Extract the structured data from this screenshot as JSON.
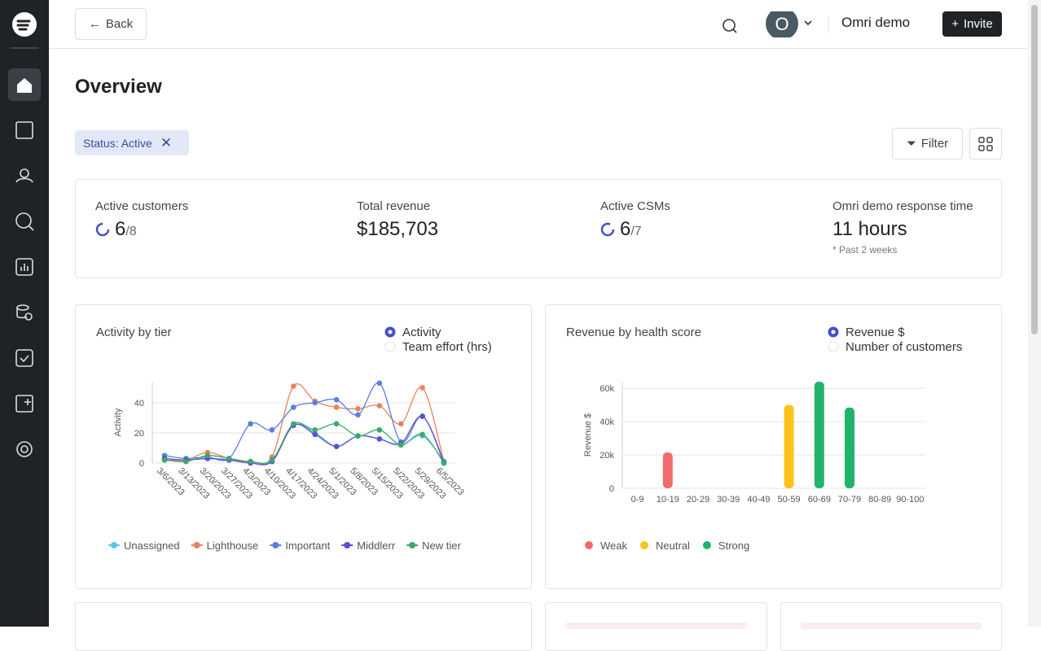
{
  "header": {
    "back": "Back",
    "avatar": "O",
    "user": "Omri demo",
    "invite": "Invite"
  },
  "page": {
    "title": "Overview",
    "filter_chip": "Status: Active",
    "filter": "Filter"
  },
  "kpis": [
    {
      "label": "Active customers",
      "value": "6",
      "total": "/8"
    },
    {
      "label": "Total revenue",
      "value": "$185,703"
    },
    {
      "label": "Active CSMs",
      "value": "6",
      "total": "/7"
    },
    {
      "label": "Omri demo response time",
      "value": "11 hours",
      "note": "* Past 2 weeks"
    }
  ],
  "chart_data": [
    {
      "type": "line",
      "title": "Activity by tier",
      "options": [
        "Activity",
        "Team effort (hrs)"
      ],
      "selected": 0,
      "y_label": "Activity",
      "categories": [
        "3/6/2023",
        "3/13/2023",
        "3/20/2023",
        "3/27/2023",
        "4/3/2023",
        "4/10/2023",
        "4/17/2023",
        "4/24/2023",
        "5/1/2023",
        "5/8/2023",
        "5/15/2023",
        "5/22/2023",
        "5/29/2023",
        "6/5/2023"
      ],
      "series": [
        {
          "name": "Unassigned",
          "color": "#5ec3e8",
          "values": [
            3,
            2,
            3,
            2,
            1,
            1,
            25,
            20,
            11,
            18,
            16,
            12,
            18,
            1
          ]
        },
        {
          "name": "Lighthouse",
          "color": "#e8825e",
          "values": [
            2,
            2,
            7,
            3,
            1,
            4,
            51,
            41,
            37,
            36,
            38,
            26,
            50,
            1
          ]
        },
        {
          "name": "Important",
          "color": "#5b7fe0",
          "values": [
            5,
            3,
            4,
            3,
            26,
            22,
            37,
            40,
            42,
            32,
            53,
            14,
            31,
            1
          ]
        },
        {
          "name": "Middlerr",
          "color": "#5a4fd6",
          "values": [
            3,
            2,
            3,
            2,
            0,
            1,
            25,
            19,
            11,
            18,
            16,
            13,
            31,
            0
          ]
        },
        {
          "name": "New tier",
          "color": "#3aa96b",
          "values": [
            2,
            1,
            5,
            3,
            1,
            2,
            26,
            22,
            26,
            18,
            22,
            12,
            19,
            0
          ]
        }
      ],
      "ylim": [
        0,
        54
      ],
      "yticks": [
        0,
        20,
        40
      ],
      "grid": true
    },
    {
      "type": "bar",
      "title": "Revenue by health score",
      "options": [
        "Revenue $",
        "Number of customers"
      ],
      "selected": 0,
      "y_label": "Revenue $",
      "categories": [
        "0-9",
        "10-19",
        "20-29",
        "30-39",
        "40-49",
        "50-59",
        "60-69",
        "70-79",
        "80-89",
        "90-100"
      ],
      "series": [
        {
          "name": "Weak",
          "color": "#f26b6b",
          "values": [
            null,
            21500,
            null,
            null,
            null,
            null,
            null,
            null,
            null,
            null
          ]
        },
        {
          "name": "Neutral",
          "color": "#fcc419",
          "values": [
            null,
            null,
            null,
            null,
            null,
            50000,
            null,
            null,
            null,
            null
          ]
        },
        {
          "name": "Strong",
          "color": "#22b36b",
          "values": [
            null,
            null,
            null,
            null,
            null,
            null,
            64000,
            48500,
            null,
            null
          ]
        }
      ],
      "ylim": [
        0,
        64000
      ],
      "yticks": [
        0,
        {
          "value": 20000,
          "label": "20k"
        },
        {
          "value": 40000,
          "label": "40k"
        },
        {
          "value": 60000,
          "label": "60k"
        }
      ],
      "grid": true
    }
  ]
}
